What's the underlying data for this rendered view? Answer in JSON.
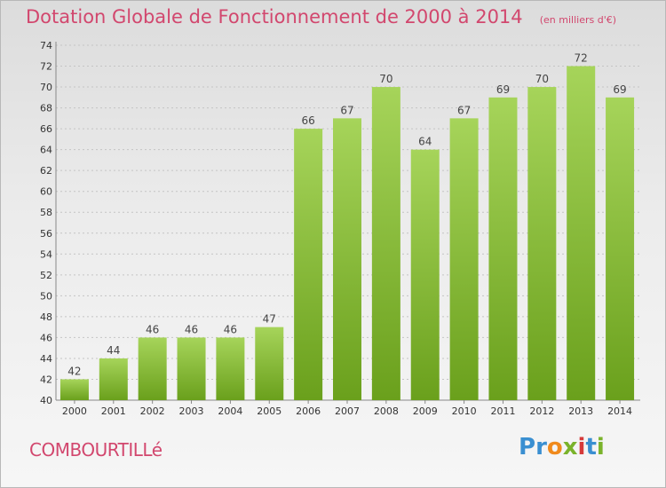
{
  "title": "Dotation Globale de Fonctionnement de 2000 à 2014",
  "subtitle": "(en milliers d'€)",
  "commune": "COMBOURTILLé",
  "logo": {
    "letters": [
      "P",
      "r",
      "o",
      "x",
      "i",
      "t",
      "i"
    ],
    "colors": [
      "#3a8fd1",
      "#3a8fd1",
      "#f08a1c",
      "#7ab32b",
      "#d63a3a",
      "#3a8fd1",
      "#7ab32b"
    ]
  },
  "colors": {
    "title": "#d2476e",
    "bar_top": "#a6d45a",
    "bar_bottom": "#6aa01c"
  },
  "chart_data": {
    "type": "bar",
    "title": "Dotation Globale de Fonctionnement de 2000 à 2014",
    "subtitle": "(en milliers d'€)",
    "xlabel": "",
    "ylabel": "",
    "categories": [
      "2000",
      "2001",
      "2002",
      "2003",
      "2004",
      "2005",
      "2006",
      "2007",
      "2008",
      "2009",
      "2010",
      "2011",
      "2012",
      "2013",
      "2014"
    ],
    "values": [
      42,
      44,
      46,
      46,
      46,
      47,
      66,
      67,
      70,
      64,
      67,
      69,
      70,
      72,
      69
    ],
    "ylim": [
      40,
      74
    ],
    "yticks": [
      40,
      42,
      44,
      46,
      48,
      50,
      52,
      54,
      56,
      58,
      60,
      62,
      64,
      66,
      68,
      70,
      72,
      74
    ],
    "grid": true,
    "data_labels": true
  }
}
